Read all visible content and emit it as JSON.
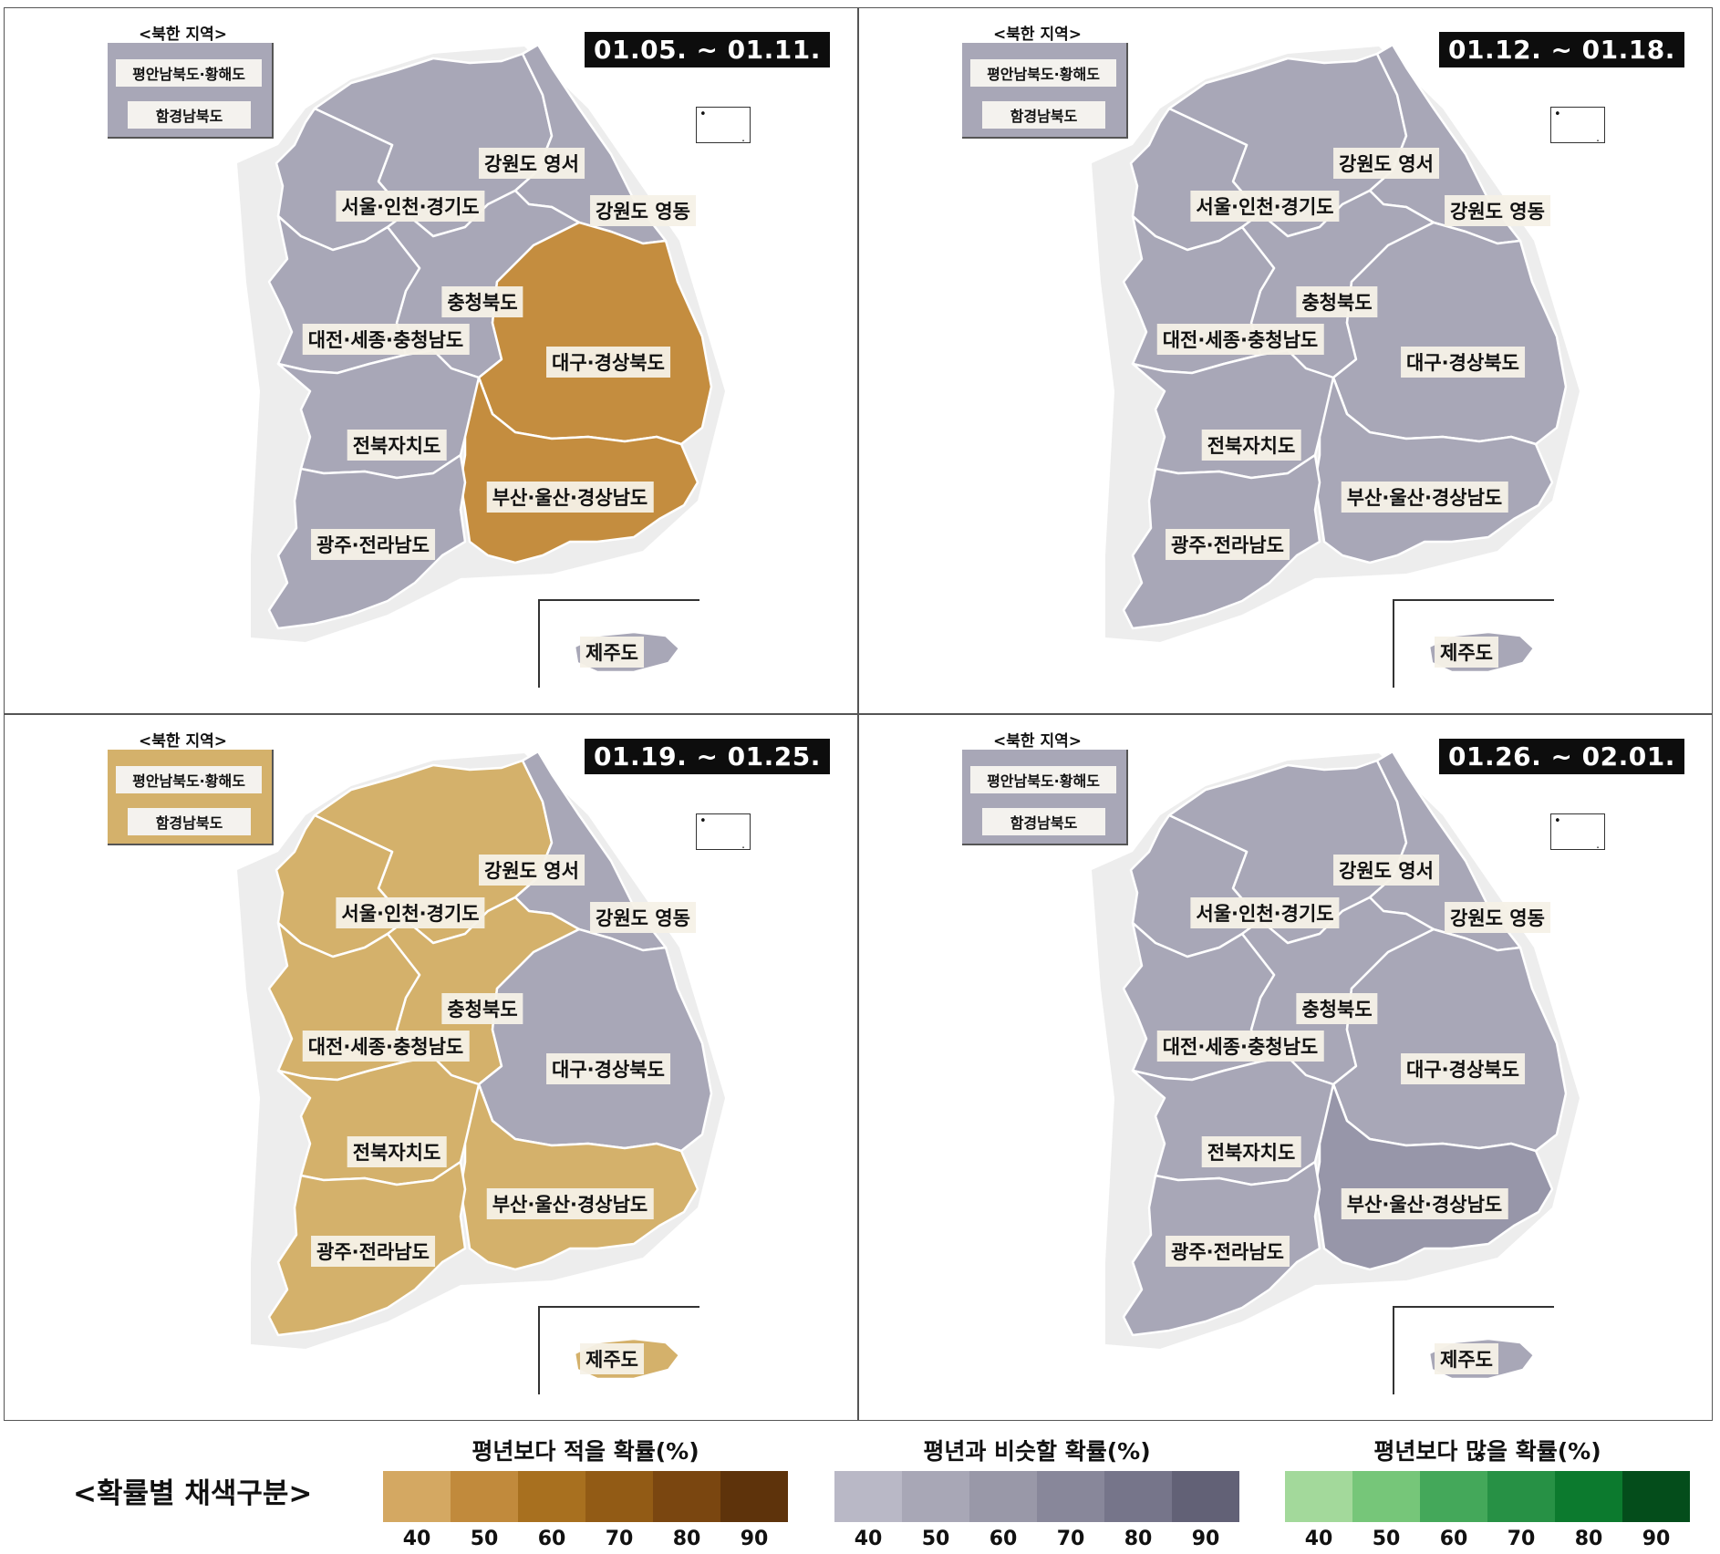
{
  "colors": {
    "gray": "#a8a7b7",
    "gray_border": "#ffffff",
    "brown_below50": "#c48d3f",
    "tan_below40": "#d4b16b",
    "gray_normal50": "#9796a9",
    "coast": "#e9e9e9"
  },
  "common": {
    "north_title": "<북한 지역>",
    "north_regions": [
      "평안남북도·황해도",
      "함경남북도"
    ],
    "region_labels": {
      "gangwon_west": "강원도 영서",
      "gangwon_east": "강원도 영동",
      "seoul": "서울·인천·경기도",
      "chungbuk": "충청북도",
      "chungnam": "대전·세종·충청남도",
      "gyeongbuk": "대구·경상북도",
      "jeonbuk": "전북자치도",
      "gyeongnam": "부산·울산·경상남도",
      "jeonnam": "광주·전라남도",
      "jeju": "제주도"
    }
  },
  "panels": [
    {
      "date": "01.05. ~ 01.11.",
      "north_colors": [
        "gray",
        "gray"
      ],
      "region_colors": {
        "gangwon_west": "gray",
        "gangwon_east": "gray",
        "seoul": "gray",
        "chungbuk": "gray",
        "chungnam": "gray",
        "gyeongbuk": "brown_below50",
        "jeonbuk": "gray",
        "gyeongnam": "brown_below50",
        "jeonnam": "gray",
        "jeju": "gray"
      }
    },
    {
      "date": "01.12. ~ 01.18.",
      "north_colors": [
        "gray",
        "gray"
      ],
      "region_colors": {
        "gangwon_west": "gray",
        "gangwon_east": "gray",
        "seoul": "gray",
        "chungbuk": "gray",
        "chungnam": "gray",
        "gyeongbuk": "gray",
        "jeonbuk": "gray",
        "gyeongnam": "gray",
        "jeonnam": "gray",
        "jeju": "gray"
      }
    },
    {
      "date": "01.19. ~ 01.25.",
      "north_colors": [
        "tan_below40",
        "tan_below40"
      ],
      "region_colors": {
        "gangwon_west": "tan_below40",
        "gangwon_east": "gray",
        "seoul": "tan_below40",
        "chungbuk": "tan_below40",
        "chungnam": "tan_below40",
        "gyeongbuk": "gray",
        "jeonbuk": "tan_below40",
        "gyeongnam": "tan_below40",
        "jeonnam": "tan_below40",
        "jeju": "tan_below40"
      }
    },
    {
      "date": "01.26. ~ 02.01.",
      "north_colors": [
        "gray",
        "gray"
      ],
      "region_colors": {
        "gangwon_west": "gray",
        "gangwon_east": "gray",
        "seoul": "gray",
        "chungbuk": "gray",
        "chungnam": "gray",
        "gyeongbuk": "gray",
        "jeonbuk": "gray",
        "gyeongnam": "gray_normal50",
        "jeonnam": "gray",
        "jeju": "gray"
      }
    }
  ],
  "legend": {
    "main_label": "<확률별 채색구분>",
    "groups": [
      {
        "title": "평년보다 적을 확률(%)",
        "colors": [
          "#d4a862",
          "#c18a3c",
          "#a8701f",
          "#925b15",
          "#7a4610",
          "#5e330b"
        ]
      },
      {
        "title": "평년과 비슷할 확률(%)",
        "colors": [
          "#b9b8c6",
          "#a8a7b6",
          "#9998a8",
          "#88879a",
          "#76758a",
          "#626176"
        ]
      },
      {
        "title": "평년보다 많을 확률(%)",
        "colors": [
          "#a3d99b",
          "#76c679",
          "#44a85a",
          "#279145",
          "#0c7a2e",
          "#044d1b"
        ]
      }
    ],
    "ticks": [
      "40",
      "50",
      "60",
      "70",
      "80",
      "90"
    ]
  }
}
